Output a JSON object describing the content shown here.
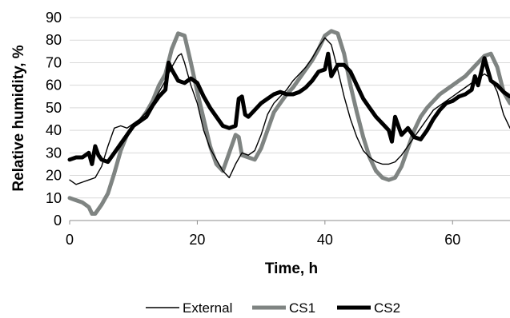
{
  "chart_data": {
    "type": "line",
    "title": "",
    "xlabel": "Time, h",
    "ylabel": "Relative humidity, %",
    "xlim": [
      0,
      69
    ],
    "ylim": [
      0,
      90
    ],
    "xticks": [
      0,
      20,
      40,
      60
    ],
    "yticks": [
      0,
      10,
      20,
      30,
      40,
      50,
      60,
      70,
      80,
      90
    ],
    "grid": "horizontal",
    "legend_position": "bottom",
    "series": [
      {
        "name": "External",
        "color": "#000000",
        "style": "thin",
        "x": [
          0,
          1,
          2,
          3,
          4,
          5,
          6,
          7,
          8,
          9,
          10,
          11,
          12,
          13,
          14,
          15,
          16,
          17,
          17.5,
          18,
          19,
          20,
          21,
          22,
          23,
          24,
          25,
          25.5,
          26,
          27,
          28,
          29,
          30,
          31,
          32,
          33,
          34,
          35,
          36,
          37,
          38,
          39,
          40,
          41,
          42,
          43,
          44,
          45,
          46,
          47,
          48,
          49,
          50,
          51,
          52,
          53,
          54,
          55,
          56,
          57,
          58,
          59,
          60,
          61,
          62,
          63,
          64,
          65,
          66,
          67,
          68,
          69
        ],
        "y": [
          18,
          16,
          17,
          18,
          19,
          24,
          33,
          41,
          42,
          41,
          43,
          45,
          48,
          52,
          57,
          62,
          68,
          73,
          74,
          70,
          60,
          52,
          40,
          32,
          27,
          22,
          19,
          22,
          25,
          30,
          29,
          31,
          38,
          47,
          52,
          55,
          58,
          62,
          65,
          68,
          72,
          77,
          81,
          78,
          67,
          55,
          45,
          37,
          31,
          28,
          26,
          25,
          25,
          26,
          29,
          33,
          37,
          41,
          45,
          49,
          51,
          53,
          55,
          57,
          59,
          61,
          63,
          65,
          63,
          57,
          47,
          41
        ]
      },
      {
        "name": "CS1",
        "color": "#7f8482",
        "style": "thick",
        "x": [
          0,
          1,
          2,
          3,
          3.5,
          4,
          5,
          6,
          7,
          8,
          9,
          10,
          11,
          12,
          13,
          14,
          15,
          16,
          17,
          18,
          19,
          20,
          21,
          22,
          23,
          24,
          25,
          26,
          26.5,
          27,
          28,
          29,
          30,
          31,
          32,
          33,
          34,
          35,
          36,
          37,
          38,
          39,
          40,
          41,
          42,
          43,
          44,
          45,
          46,
          47,
          48,
          49,
          50,
          51,
          52,
          53,
          54,
          55,
          56,
          57,
          58,
          59,
          60,
          61,
          62,
          63,
          64,
          65,
          66,
          67,
          68,
          69
        ],
        "y": [
          10,
          9,
          8,
          6,
          3,
          3,
          7,
          12,
          21,
          31,
          38,
          42,
          44,
          48,
          53,
          60,
          65,
          76,
          83,
          82,
          70,
          57,
          45,
          33,
          25,
          22,
          30,
          38,
          37,
          29,
          28,
          27,
          32,
          40,
          48,
          52,
          56,
          59,
          63,
          67,
          71,
          76,
          82,
          84,
          83,
          74,
          60,
          48,
          37,
          28,
          22,
          19,
          18,
          19,
          24,
          32,
          40,
          46,
          50,
          53,
          56,
          58,
          60,
          62,
          64,
          67,
          70,
          73,
          74,
          68,
          57,
          52
        ]
      },
      {
        "name": "CS2",
        "color": "#000000",
        "style": "thick",
        "x": [
          0,
          1,
          2,
          3,
          3.5,
          4,
          4.5,
          5,
          6,
          7,
          8,
          9,
          10,
          11,
          12,
          13,
          14,
          15,
          15.5,
          16,
          17,
          18,
          19,
          20,
          21,
          22,
          23,
          24,
          25,
          26,
          26.5,
          27,
          27.5,
          28,
          29,
          30,
          31,
          32,
          33,
          34,
          35,
          36,
          37,
          38,
          39,
          40,
          40.5,
          41,
          42,
          43,
          44,
          45,
          46,
          47,
          48,
          49,
          50,
          50.5,
          51,
          52,
          53,
          54,
          55,
          56,
          57,
          58,
          59,
          60,
          61,
          62,
          63,
          63.5,
          64,
          65,
          66,
          67,
          68,
          69
        ],
        "y": [
          27,
          28,
          28,
          30,
          25,
          33,
          29,
          27,
          26,
          30,
          34,
          38,
          42,
          44,
          46,
          51,
          55,
          58,
          70,
          67,
          62,
          61,
          63,
          61,
          55,
          50,
          46,
          42,
          41,
          42,
          54,
          55,
          47,
          46,
          49,
          52,
          54,
          56,
          57,
          56,
          56,
          57,
          59,
          62,
          66,
          67,
          74,
          64,
          69,
          69,
          66,
          60,
          54,
          50,
          46,
          43,
          40,
          35,
          46,
          38,
          41,
          37,
          36,
          40,
          45,
          49,
          52,
          53,
          55,
          56,
          58,
          64,
          60,
          72,
          62,
          60,
          57,
          55
        ]
      }
    ]
  }
}
